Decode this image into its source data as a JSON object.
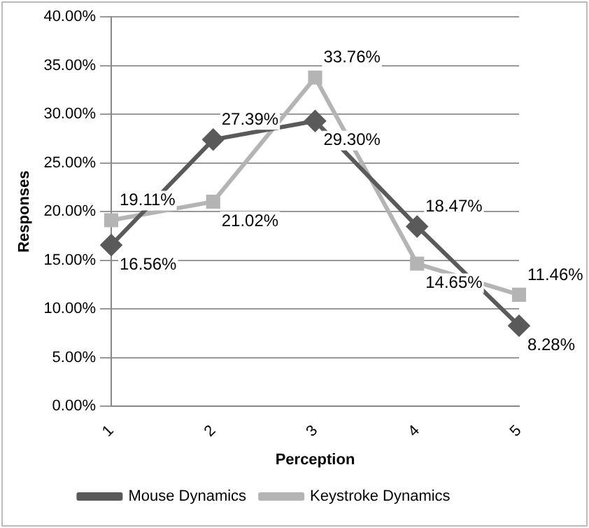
{
  "chart_data": {
    "type": "line",
    "xlabel": "Perception",
    "ylabel": "Responses",
    "categories": [
      "1",
      "2",
      "3",
      "4",
      "5"
    ],
    "series": [
      {
        "name": "Mouse Dynamics",
        "color": "#5a5a5a",
        "marker": "diamond",
        "values": [
          16.56,
          27.39,
          29.3,
          18.47,
          8.28
        ],
        "value_labels": [
          "16.56%",
          "27.39%",
          "29.30%",
          "18.47%",
          "8.28%"
        ]
      },
      {
        "name": "Keystroke Dynamics",
        "color": "#b4b4b4",
        "marker": "square",
        "values": [
          19.11,
          21.02,
          33.76,
          14.65,
          11.46
        ],
        "value_labels": [
          "19.11%",
          "21.02%",
          "33.76%",
          "14.65%",
          "11.46%"
        ]
      }
    ],
    "ylim": [
      0,
      40
    ],
    "yticks": [
      {
        "value": 0,
        "label": "0.00%"
      },
      {
        "value": 5,
        "label": "5.00%"
      },
      {
        "value": 10,
        "label": "10.00%"
      },
      {
        "value": 15,
        "label": "15.00%"
      },
      {
        "value": 20,
        "label": "20.00%"
      },
      {
        "value": 25,
        "label": "25.00%"
      },
      {
        "value": 30,
        "label": "30.00%"
      },
      {
        "value": 35,
        "label": "35.00%"
      },
      {
        "value": 40,
        "label": "40.00%"
      }
    ],
    "grid": "y",
    "legend": "bottom",
    "line_style": "solid"
  }
}
